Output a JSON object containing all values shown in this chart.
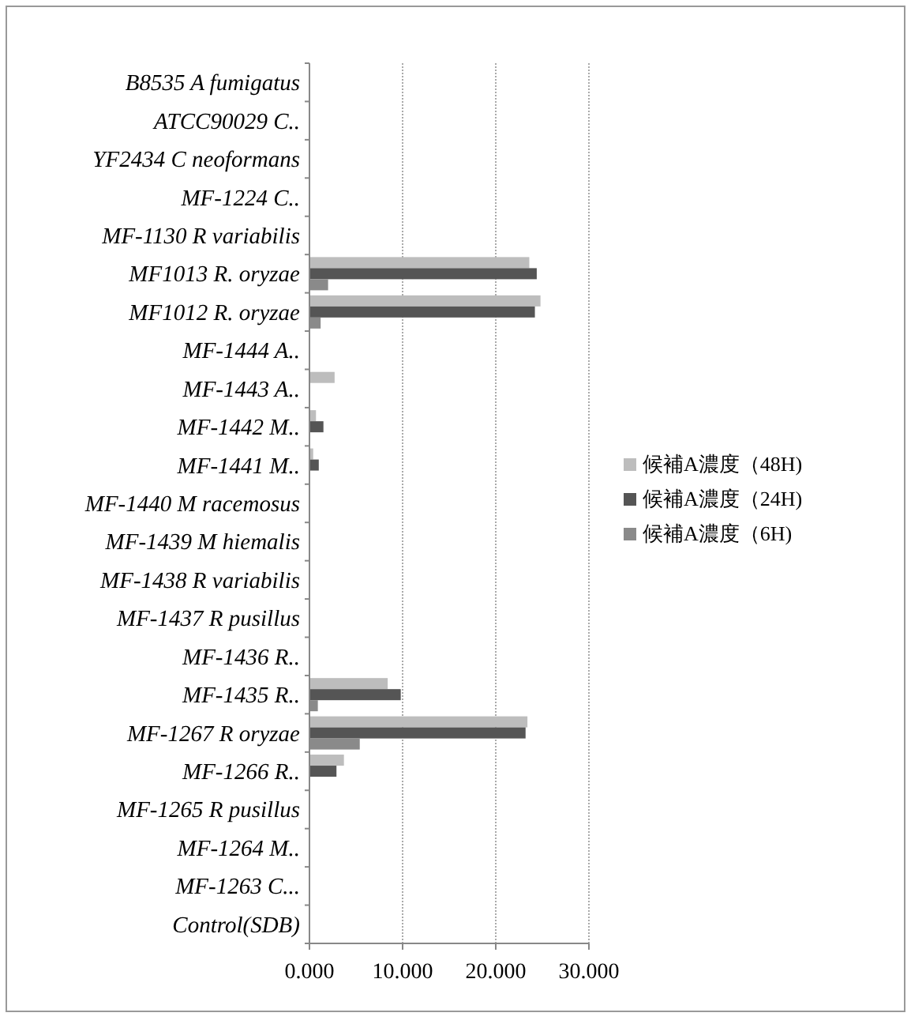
{
  "chart_data": {
    "type": "bar",
    "orientation": "horizontal",
    "categories": [
      "B8535 A fumigatus",
      "ATCC90029 C..",
      "YF2434 C neoformans",
      "MF-1224 C..",
      "MF-1130 R variabilis",
      "MF1013 R. oryzae",
      "MF1012 R. oryzae",
      "MF-1444 A..",
      "MF-1443 A..",
      "MF-1442 M..",
      "MF-1441 M..",
      "MF-1440 M racemosus",
      "MF-1439 M hiemalis",
      "MF-1438 R variabilis",
      "MF-1437 R pusillus",
      "MF-1436 R..",
      "MF-1435 R..",
      "MF-1267 R oryzae",
      "MF-1266 R..",
      "MF-1265 R pusillus",
      "MF-1264 M..",
      "MF-1263  C...",
      "Control(SDB)"
    ],
    "series": [
      {
        "name": "候補A濃度（48H)",
        "color": "#bdbdbd",
        "values": [
          0,
          0,
          0,
          0,
          0,
          23.6,
          24.8,
          0,
          2.7,
          0.7,
          0.4,
          0,
          0,
          0,
          0,
          0,
          8.4,
          23.4,
          3.7,
          0,
          0,
          0,
          0
        ]
      },
      {
        "name": "候補A濃度（24H)",
        "color": "#555555",
        "values": [
          0,
          0,
          0,
          0,
          0,
          24.4,
          24.2,
          0,
          0,
          1.5,
          1.0,
          0,
          0,
          0,
          0,
          0,
          9.8,
          23.2,
          2.9,
          0,
          0,
          0,
          0
        ]
      },
      {
        "name": "候補A濃度（6H)",
        "color": "#8a8a8a",
        "values": [
          0,
          0,
          0,
          0,
          0,
          2.0,
          1.2,
          0,
          0,
          0,
          0,
          0,
          0,
          0,
          0,
          0,
          0.9,
          5.4,
          0,
          0,
          0,
          0,
          0
        ]
      }
    ],
    "xlim": [
      0,
      30
    ],
    "xticks": [
      {
        "value": 0,
        "label": "0.000"
      },
      {
        "value": 10,
        "label": "10.000"
      },
      {
        "value": 20,
        "label": "20.000"
      },
      {
        "value": 30,
        "label": "30.000"
      }
    ],
    "grid": "x",
    "legend": "right"
  }
}
